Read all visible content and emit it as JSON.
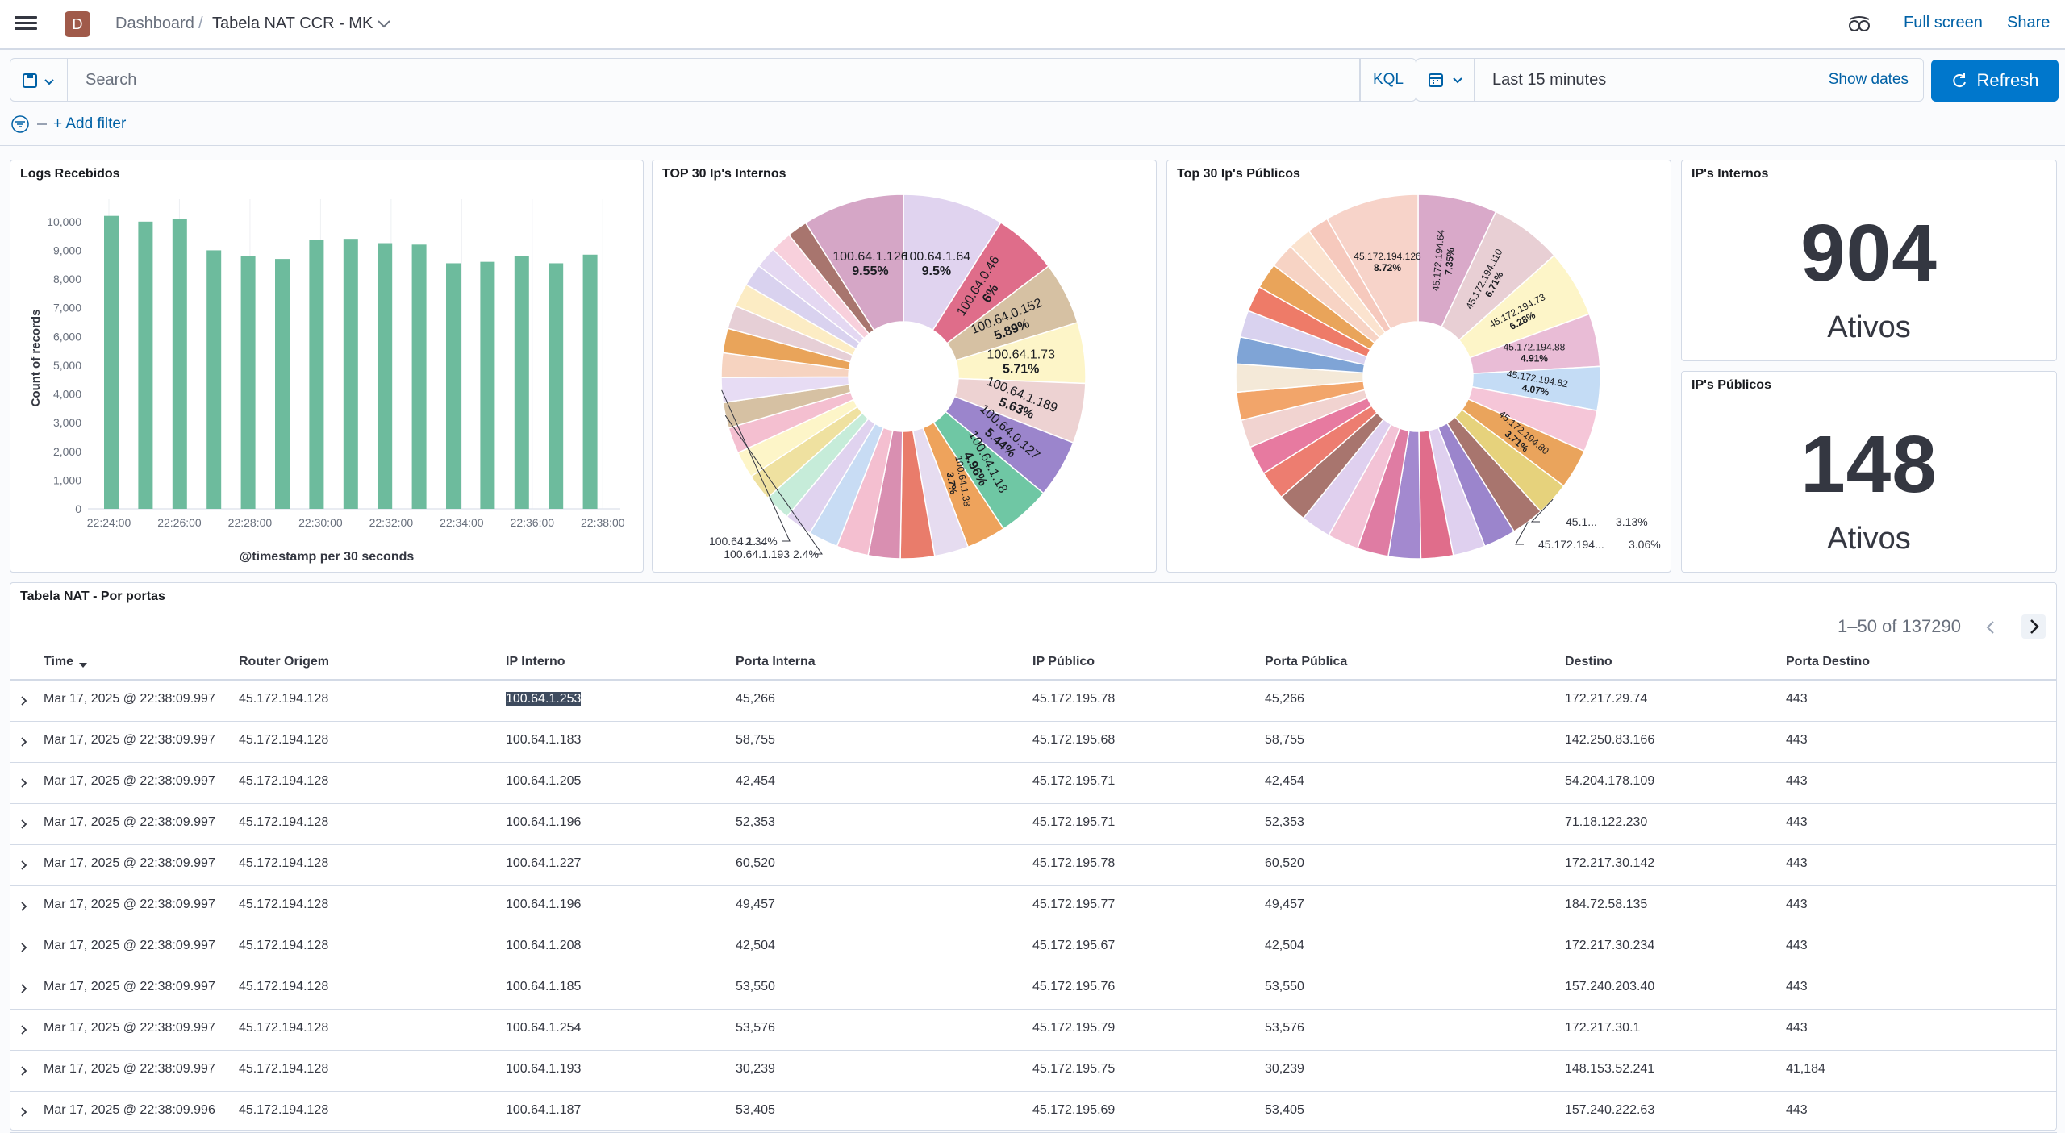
{
  "topbar": {
    "space_initial": "D",
    "breadcrumb_root": "Dashboard",
    "breadcrumb_sep": "/",
    "dashboard_title": "Tabela NAT CCR - MK",
    "full_screen": "Full screen",
    "share": "Share"
  },
  "query": {
    "placeholder": "Search",
    "language": "KQL",
    "time_range": "Last 15 minutes",
    "show_dates": "Show dates",
    "refresh": "Refresh",
    "add_filter": "+ Add filter"
  },
  "panels": {
    "logs": {
      "title": "Logs Recebidos",
      "ylabel": "Count of records",
      "xlabel": "@timestamp per 30 seconds"
    },
    "internal_pie": {
      "title": "TOP 30 Ip's Internos"
    },
    "public_pie": {
      "title": "Top 30 Ip's Públicos"
    },
    "internal_metric": {
      "title": "IP's Internos",
      "value": "904",
      "label": "Ativos"
    },
    "public_metric": {
      "title": "IP's Públicos",
      "value": "148",
      "label": "Ativos"
    },
    "table": {
      "title": "Tabela NAT - Por portas",
      "pagination": "1–50 of 137290"
    }
  },
  "chart_data": [
    {
      "type": "bar",
      "title": "Logs Recebidos",
      "xlabel": "@timestamp per 30 seconds",
      "ylabel": "Count of records",
      "ylim": [
        0,
        10500
      ],
      "yticks": [
        "0",
        "1,000",
        "2,000",
        "3,000",
        "4,000",
        "5,000",
        "6,000",
        "7,000",
        "8,000",
        "9,000",
        "10,000"
      ],
      "xticks": [
        "22:24:00",
        "22:26:00",
        "22:28:00",
        "22:30:00",
        "22:32:00",
        "22:34:00",
        "22:36:00",
        "22:38:00"
      ],
      "values": [
        10200,
        10000,
        10100,
        9000,
        8800,
        8700,
        9350,
        9400,
        9250,
        9200,
        8550,
        8600,
        8800,
        8550,
        8850
      ],
      "color": "#6dbb9d",
      "grid": "vertical"
    },
    {
      "type": "pie",
      "title": "TOP 30 Ip's Internos",
      "donut": true,
      "slices": [
        {
          "label": "100.64.1.64",
          "pct": 9.5,
          "value_label": "9.5%",
          "color": "#e0d3ef"
        },
        {
          "label": "100.64.0.46",
          "pct": 6,
          "value_label": "6%",
          "color": "#df6d8a"
        },
        {
          "label": "100.64.0.152",
          "pct": 5.89,
          "value_label": "5.89%",
          "color": "#d6c1a3"
        },
        {
          "label": "100.64.1.73",
          "pct": 5.71,
          "value_label": "5.71%",
          "color": "#fdf5c8"
        },
        {
          "label": "100.64.1.189",
          "pct": 5.63,
          "value_label": "5.63%",
          "color": "#edd2d2"
        },
        {
          "label": "100.64.0.127",
          "pct": 5.44,
          "value_label": "5.44%",
          "color": "#9b85cc"
        },
        {
          "label": "100.64.1.18",
          "pct": 4.96,
          "value_label": "4.96%",
          "color": "#6fc7a4"
        },
        {
          "label": "100.64.1.38",
          "pct": 3.7,
          "value_label": "3.7%",
          "color": "#eea35c"
        },
        {
          "label": "",
          "pct": 3.2,
          "color": "#e6dcf0"
        },
        {
          "label": "",
          "pct": 3.2,
          "color": "#e97c6b"
        },
        {
          "label": "",
          "pct": 3.0,
          "color": "#d98fb1"
        },
        {
          "label": "",
          "pct": 3.0,
          "color": "#f4bfd0"
        },
        {
          "label": "",
          "pct": 2.8,
          "color": "#c8dcf4"
        },
        {
          "label": "",
          "pct": 2.6,
          "color": "#e0d3ef"
        },
        {
          "label": "",
          "pct": 2.5,
          "color": "#c6ecd9"
        },
        {
          "label": "",
          "pct": 2.5,
          "color": "#efe1a0"
        },
        {
          "label": "",
          "pct": 2.5,
          "color": "#fdf5c8"
        },
        {
          "label": "",
          "pct": 2.45,
          "color": "#f4bfd0"
        },
        {
          "label": "100.64.1.193",
          "pct": 2.4,
          "value_label": "2.4%",
          "color": "#d6c1a3"
        },
        {
          "label": "100.64.1....",
          "pct": 2.34,
          "value_label": "2.34%",
          "color": "#e7dcf4"
        },
        {
          "label": "",
          "pct": 2.3,
          "color": "#f6d3c0"
        },
        {
          "label": "",
          "pct": 2.3,
          "color": "#e9a45a"
        },
        {
          "label": "",
          "pct": 2.2,
          "color": "#e6cfd6"
        },
        {
          "label": "",
          "pct": 2.2,
          "color": "#fcecc4"
        },
        {
          "label": "",
          "pct": 2.1,
          "color": "#d9d2ef"
        },
        {
          "label": "",
          "pct": 2.0,
          "color": "#e4d8f2"
        },
        {
          "label": "",
          "pct": 2.0,
          "color": "#f8d0dc"
        },
        {
          "label": "",
          "pct": 1.9,
          "color": "#a8756e"
        },
        {
          "label": "100.64.1.126",
          "pct": 9.55,
          "value_label": "9.55%",
          "color": "#d5a6c6"
        }
      ]
    },
    {
      "type": "pie",
      "title": "Top 30 Ip's Públicos",
      "donut": true,
      "slices": [
        {
          "label": "45.172.194.64",
          "pct": 7.35,
          "value_label": "7.35%",
          "color": "#d9a9c9"
        },
        {
          "label": "45.172.194.110",
          "pct": 6.71,
          "value_label": "6.71%",
          "color": "#e8cfd4"
        },
        {
          "label": "45.172.194.73",
          "pct": 6.28,
          "value_label": "6.28%",
          "color": "#fdf5c8"
        },
        {
          "label": "45.172.194.88",
          "pct": 4.91,
          "value_label": "4.91%",
          "color": "#e9bcd6"
        },
        {
          "label": "45.172.194.82",
          "pct": 4.07,
          "value_label": "4.07%",
          "color": "#c4dcf5"
        },
        {
          "label": "",
          "pct": 3.9,
          "color": "#f5c6d8"
        },
        {
          "label": "45.172.194.80",
          "pct": 3.71,
          "value_label": "3.71%",
          "color": "#eaa45c"
        },
        {
          "label": "45.1...",
          "pct": 3.13,
          "value_label": "3.13%",
          "color": "#e6d27c"
        },
        {
          "label": "45.172.194...",
          "pct": 3.06,
          "value_label": "3.06%",
          "color": "#a8756e"
        },
        {
          "label": "",
          "pct": 3.0,
          "color": "#9b85cc"
        },
        {
          "label": "",
          "pct": 3.0,
          "color": "#dfd0ef"
        },
        {
          "label": "",
          "pct": 3.0,
          "color": "#e06d8b"
        },
        {
          "label": "",
          "pct": 3.0,
          "color": "#a389cf"
        },
        {
          "label": "",
          "pct": 2.9,
          "color": "#df7ca3"
        },
        {
          "label": "",
          "pct": 2.9,
          "color": "#f3c3d6"
        },
        {
          "label": "",
          "pct": 2.8,
          "color": "#dfd0ef"
        },
        {
          "label": "",
          "pct": 2.8,
          "color": "#a8756e"
        },
        {
          "label": "",
          "pct": 2.7,
          "color": "#ed7d70"
        },
        {
          "label": "",
          "pct": 2.7,
          "color": "#e77aa0"
        },
        {
          "label": "",
          "pct": 2.6,
          "color": "#f1d3d0"
        },
        {
          "label": "",
          "pct": 2.6,
          "color": "#f2a56a"
        },
        {
          "label": "",
          "pct": 2.6,
          "color": "#f4e9d8"
        },
        {
          "label": "",
          "pct": 2.5,
          "color": "#7fa4d6"
        },
        {
          "label": "",
          "pct": 2.5,
          "color": "#d9d2ef"
        },
        {
          "label": "",
          "pct": 2.4,
          "color": "#ee7b68"
        },
        {
          "label": "",
          "pct": 2.4,
          "color": "#e9a45a"
        },
        {
          "label": "",
          "pct": 2.3,
          "color": "#f7d3c4"
        },
        {
          "label": "",
          "pct": 2.2,
          "color": "#fbe3cf"
        },
        {
          "label": "",
          "pct": 2.0,
          "color": "#f6c9bd"
        },
        {
          "label": "45.172.194.126",
          "pct": 8.72,
          "value_label": "8.72%",
          "color": "#f7d3c9"
        }
      ]
    }
  ],
  "table": {
    "columns": [
      "Time",
      "Router Origem",
      "IP Interno",
      "Porta Interna",
      "IP Público",
      "Porta Pública",
      "Destino",
      "Porta Destino"
    ],
    "rows": [
      [
        "Mar 17, 2025 @ 22:38:09.997",
        "45.172.194.128",
        "100.64.1.253",
        "45,266",
        "45.172.195.78",
        "45,266",
        "172.217.29.74",
        "443"
      ],
      [
        "Mar 17, 2025 @ 22:38:09.997",
        "45.172.194.128",
        "100.64.1.183",
        "58,755",
        "45.172.195.68",
        "58,755",
        "142.250.83.166",
        "443"
      ],
      [
        "Mar 17, 2025 @ 22:38:09.997",
        "45.172.194.128",
        "100.64.1.205",
        "42,454",
        "45.172.195.71",
        "42,454",
        "54.204.178.109",
        "443"
      ],
      [
        "Mar 17, 2025 @ 22:38:09.997",
        "45.172.194.128",
        "100.64.1.196",
        "52,353",
        "45.172.195.71",
        "52,353",
        "71.18.122.230",
        "443"
      ],
      [
        "Mar 17, 2025 @ 22:38:09.997",
        "45.172.194.128",
        "100.64.1.227",
        "60,520",
        "45.172.195.78",
        "60,520",
        "172.217.30.142",
        "443"
      ],
      [
        "Mar 17, 2025 @ 22:38:09.997",
        "45.172.194.128",
        "100.64.1.196",
        "49,457",
        "45.172.195.77",
        "49,457",
        "184.72.58.135",
        "443"
      ],
      [
        "Mar 17, 2025 @ 22:38:09.997",
        "45.172.194.128",
        "100.64.1.208",
        "42,504",
        "45.172.195.67",
        "42,504",
        "172.217.30.234",
        "443"
      ],
      [
        "Mar 17, 2025 @ 22:38:09.997",
        "45.172.194.128",
        "100.64.1.185",
        "53,550",
        "45.172.195.76",
        "53,550",
        "157.240.203.40",
        "443"
      ],
      [
        "Mar 17, 2025 @ 22:38:09.997",
        "45.172.194.128",
        "100.64.1.254",
        "53,576",
        "45.172.195.79",
        "53,576",
        "172.217.30.1",
        "443"
      ],
      [
        "Mar 17, 2025 @ 22:38:09.997",
        "45.172.194.128",
        "100.64.1.193",
        "30,239",
        "45.172.195.75",
        "30,239",
        "148.153.52.241",
        "41,184"
      ],
      [
        "Mar 17, 2025 @ 22:38:09.996",
        "45.172.194.128",
        "100.64.1.187",
        "53,405",
        "45.172.195.69",
        "53,405",
        "157.240.222.63",
        "443"
      ]
    ]
  }
}
